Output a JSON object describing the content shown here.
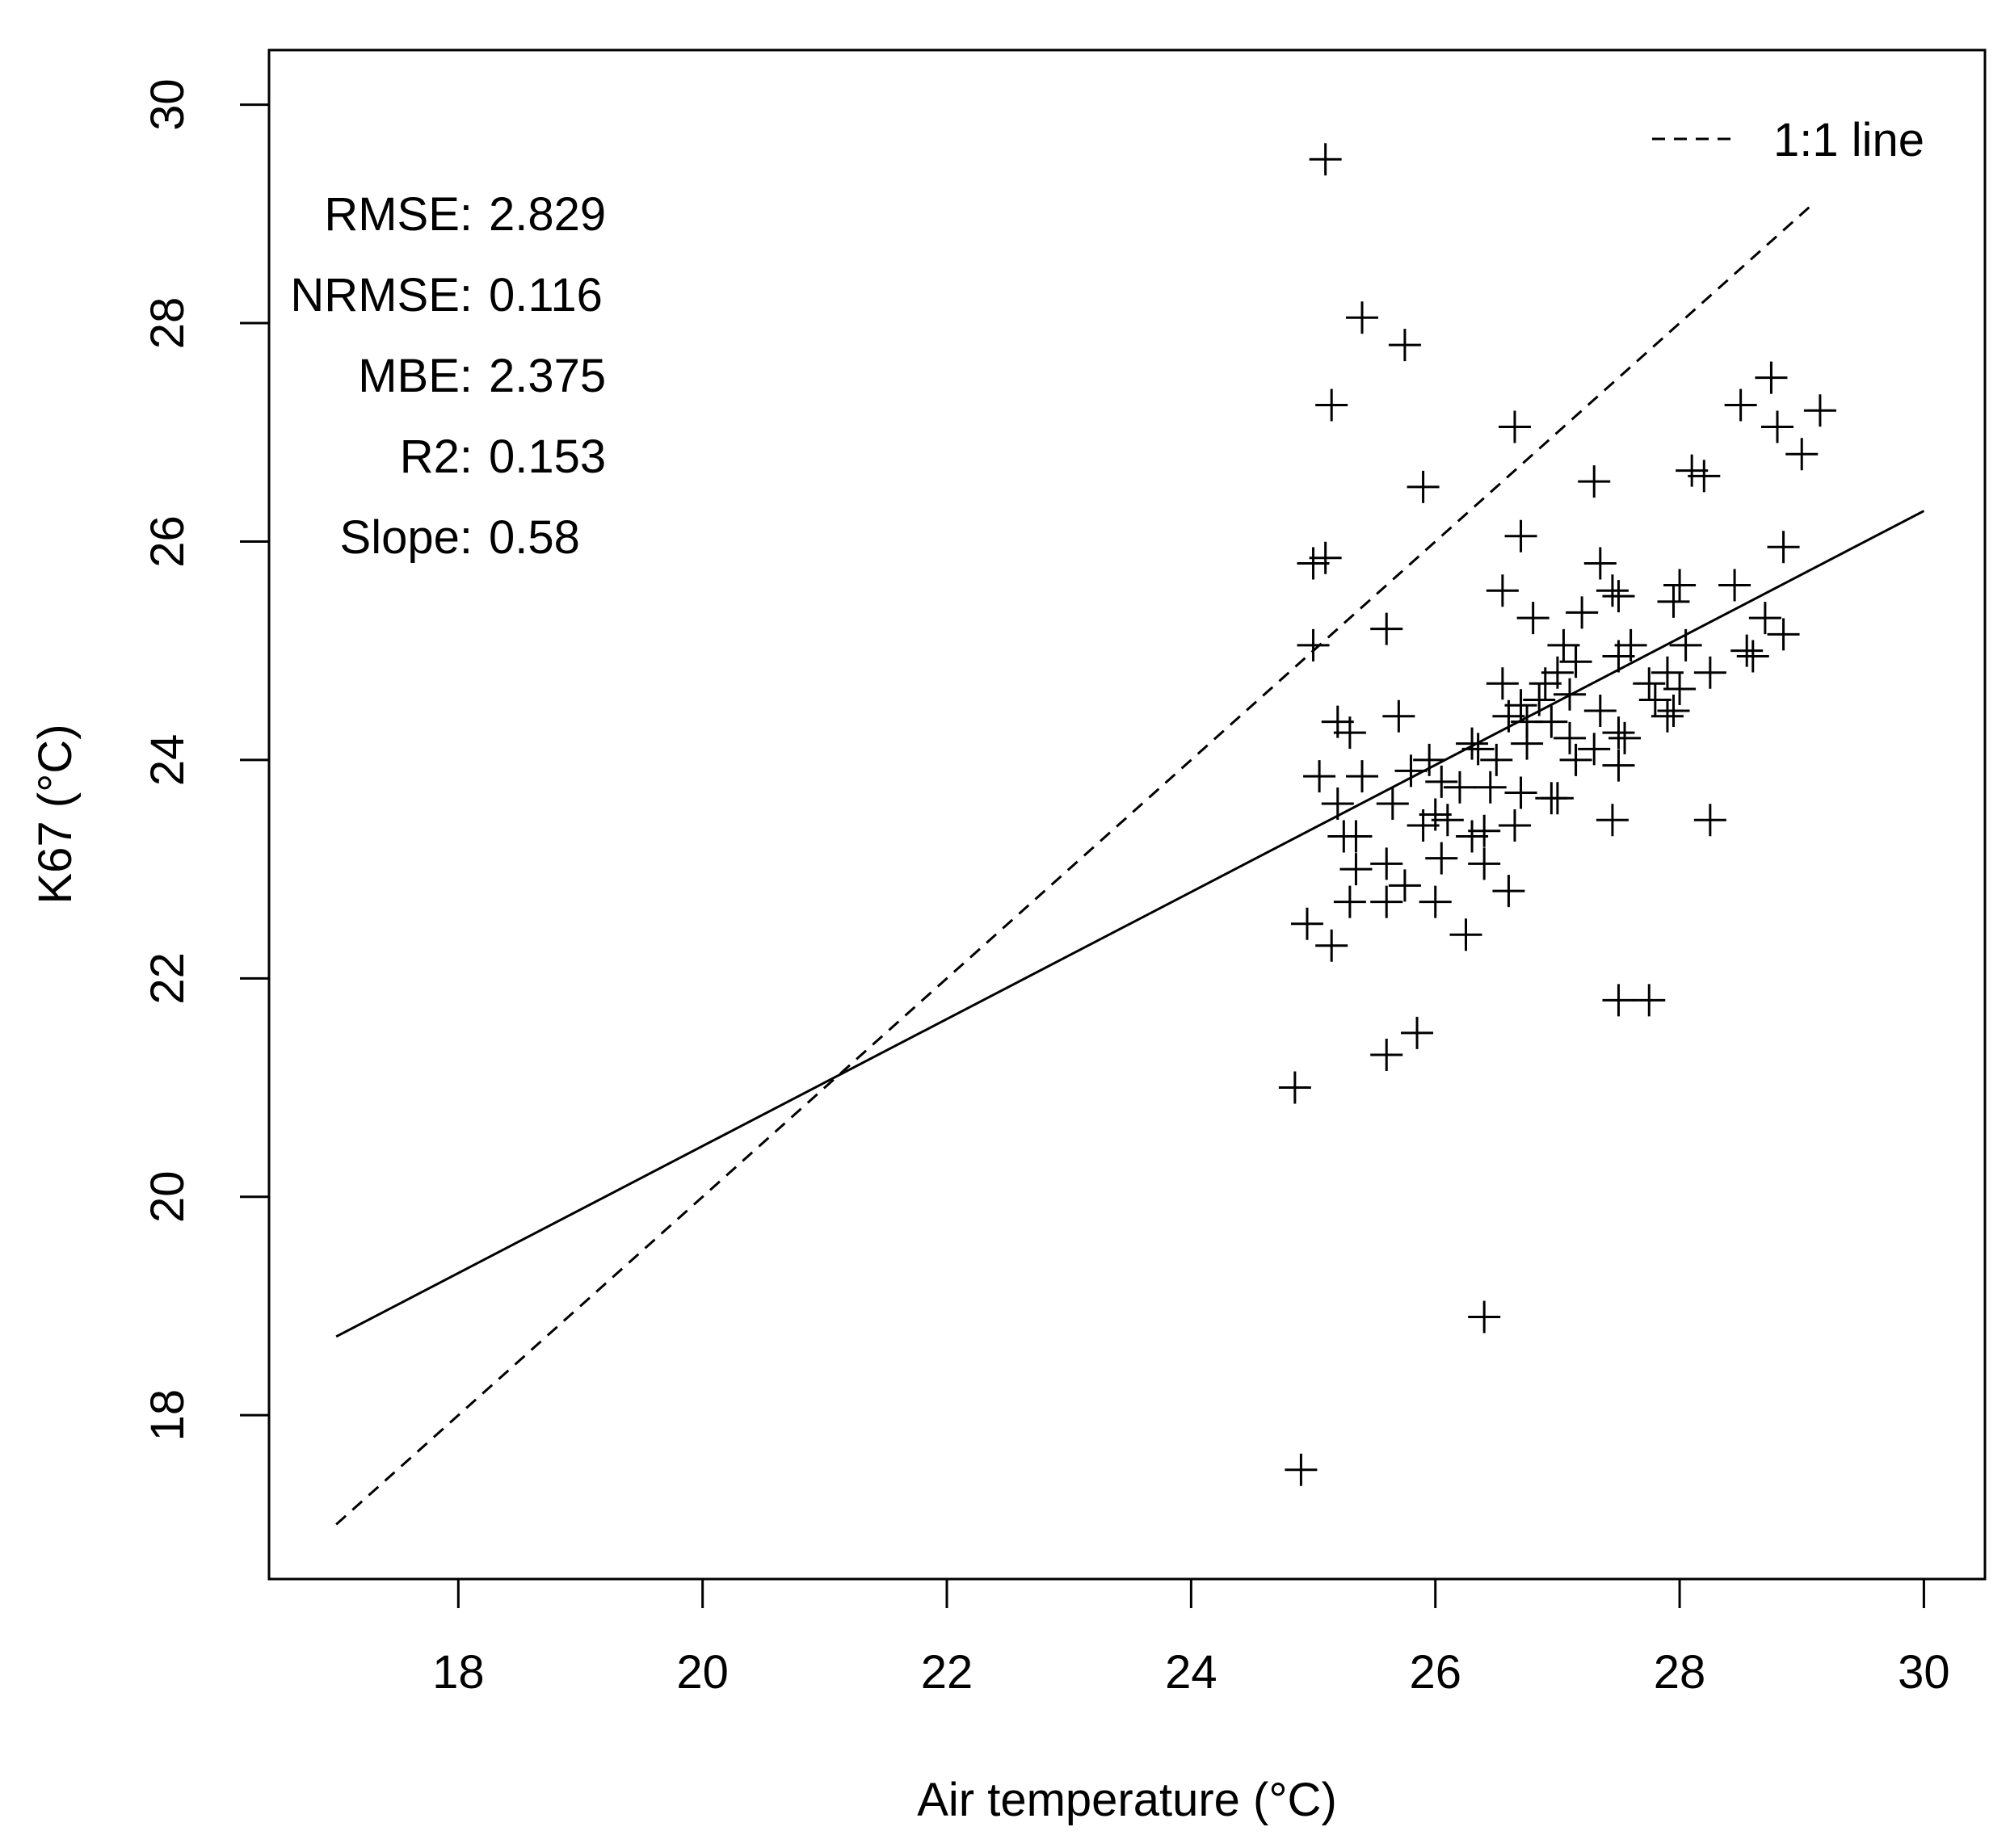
{
  "chart_data": {
    "type": "scatter",
    "title": "",
    "xlabel": "Air temperature (°C)",
    "ylabel": "K67 (°C)",
    "xlim": [
      16.45,
      30.5
    ],
    "ylim": [
      16.5,
      30.5
    ],
    "xticks": [
      18,
      20,
      22,
      24,
      26,
      28,
      30
    ],
    "yticks": [
      18,
      20,
      22,
      24,
      26,
      28,
      30
    ],
    "grid": false,
    "legend": {
      "position": "top-right",
      "entries": [
        {
          "label": "1:1 line",
          "style": "dashed"
        }
      ]
    },
    "stats": [
      {
        "label": "RMSE:",
        "value": "2.829"
      },
      {
        "label": "NRMSE:",
        "value": "0.116"
      },
      {
        "label": "MBE:",
        "value": "2.375"
      },
      {
        "label": "R2:",
        "value": "0.153"
      },
      {
        "label": "Slope:",
        "value": "0.58"
      }
    ],
    "lines": [
      {
        "name": "1:1 line",
        "style": "dashed",
        "x": [
          17,
          29.1
        ],
        "y": [
          17,
          29.1
        ]
      },
      {
        "name": "fit",
        "style": "solid",
        "x": [
          17,
          30
        ],
        "y": [
          18.72,
          26.28
        ]
      }
    ],
    "points": [
      [
        25.1,
        29.5
      ],
      [
        25.4,
        28.05
      ],
      [
        25.75,
        27.8
      ],
      [
        25.15,
        27.25
      ],
      [
        25.9,
        26.5
      ],
      [
        26.65,
        27.05
      ],
      [
        25.0,
        25.8
      ],
      [
        25.1,
        25.85
      ],
      [
        26.7,
        26.05
      ],
      [
        27.3,
        26.55
      ],
      [
        28.1,
        26.65
      ],
      [
        28.2,
        26.6
      ],
      [
        28.5,
        27.25
      ],
      [
        28.75,
        27.5
      ],
      [
        28.8,
        27.05
      ],
      [
        29.0,
        26.8
      ],
      [
        29.15,
        27.2
      ],
      [
        28.85,
        25.95
      ],
      [
        25.0,
        25.05
      ],
      [
        25.6,
        25.2
      ],
      [
        26.55,
        25.55
      ],
      [
        27.35,
        25.8
      ],
      [
        27.45,
        25.55
      ],
      [
        27.5,
        25.5
      ],
      [
        28.0,
        25.6
      ],
      [
        28.45,
        25.6
      ],
      [
        28.7,
        25.3
      ],
      [
        28.85,
        25.15
      ],
      [
        28.55,
        25.0
      ],
      [
        28.6,
        24.95
      ],
      [
        26.8,
        25.3
      ],
      [
        27.2,
        25.35
      ],
      [
        27.05,
        25.05
      ],
      [
        27.6,
        25.05
      ],
      [
        27.95,
        25.45
      ],
      [
        28.05,
        25.05
      ],
      [
        27.5,
        24.95
      ],
      [
        27.75,
        24.7
      ],
      [
        27.9,
        24.8
      ],
      [
        28.25,
        24.8
      ],
      [
        26.55,
        24.7
      ],
      [
        26.7,
        24.5
      ],
      [
        26.85,
        24.55
      ],
      [
        26.9,
        24.7
      ],
      [
        27.0,
        24.8
      ],
      [
        27.1,
        24.6
      ],
      [
        27.15,
        24.9
      ],
      [
        26.75,
        24.35
      ],
      [
        26.95,
        24.35
      ],
      [
        27.35,
        24.45
      ],
      [
        27.5,
        24.25
      ],
      [
        27.55,
        24.2
      ],
      [
        27.8,
        24.55
      ],
      [
        27.9,
        24.4
      ],
      [
        27.95,
        24.45
      ],
      [
        28.0,
        24.65
      ],
      [
        25.2,
        24.35
      ],
      [
        25.3,
        24.25
      ],
      [
        25.7,
        24.4
      ],
      [
        26.3,
        24.15
      ],
      [
        26.35,
        24.1
      ],
      [
        26.5,
        24.0
      ],
      [
        26.6,
        24.4
      ],
      [
        26.75,
        24.15
      ],
      [
        27.1,
        24.2
      ],
      [
        27.15,
        24.0
      ],
      [
        27.3,
        24.1
      ],
      [
        27.5,
        23.95
      ],
      [
        25.05,
        23.85
      ],
      [
        25.4,
        23.85
      ],
      [
        25.8,
        23.9
      ],
      [
        25.95,
        24.0
      ],
      [
        26.05,
        23.8
      ],
      [
        26.2,
        23.75
      ],
      [
        26.45,
        23.75
      ],
      [
        26.7,
        23.7
      ],
      [
        26.95,
        23.65
      ],
      [
        27.0,
        23.65
      ],
      [
        25.2,
        23.6
      ],
      [
        25.65,
        23.6
      ],
      [
        26.0,
        23.5
      ],
      [
        26.1,
        23.45
      ],
      [
        26.3,
        23.3
      ],
      [
        26.4,
        23.35
      ],
      [
        26.65,
        23.4
      ],
      [
        27.45,
        23.45
      ],
      [
        28.25,
        23.45
      ],
      [
        25.9,
        23.4
      ],
      [
        25.25,
        23.3
      ],
      [
        25.35,
        23.3
      ],
      [
        25.35,
        23.0
      ],
      [
        25.6,
        23.05
      ],
      [
        25.75,
        22.85
      ],
      [
        26.05,
        23.1
      ],
      [
        26.4,
        23.05
      ],
      [
        25.3,
        22.7
      ],
      [
        25.6,
        22.7
      ],
      [
        26.0,
        22.7
      ],
      [
        26.6,
        22.8
      ],
      [
        24.95,
        22.5
      ],
      [
        25.15,
        22.3
      ],
      [
        26.25,
        22.4
      ],
      [
        25.85,
        21.5
      ],
      [
        25.6,
        21.3
      ],
      [
        24.85,
        21.0
      ],
      [
        27.5,
        21.8
      ],
      [
        27.75,
        21.8
      ],
      [
        26.4,
        18.9
      ],
      [
        24.9,
        17.5
      ]
    ]
  }
}
